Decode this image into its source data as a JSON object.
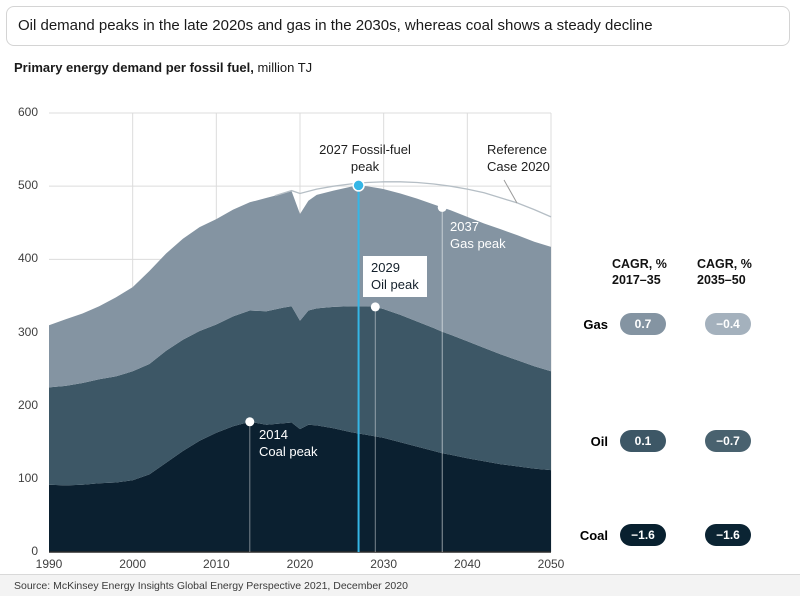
{
  "title": "Oil demand peaks in the late 2020s and gas in the 2030s, whereas coal shows a steady decline",
  "subtitle": {
    "bold": "Primary energy demand per fossil fuel,",
    "rest": " million TJ"
  },
  "source": "Source: McKinsey Energy Insights Global Energy Perspective 2021, December 2020",
  "annotations": {
    "fossil_peak": "2027 Fossil-fuel peak",
    "reference_case": "Reference Case 2020",
    "gas_peak_line1": "2037",
    "gas_peak_line2": "Gas peak",
    "oil_peak_line1": "2029",
    "oil_peak_line2": "Oil peak",
    "coal_peak_line1": "2014",
    "coal_peak_line2": "Coal peak"
  },
  "cagr": {
    "col1_header_line1": "CAGR, %",
    "col1_header_line2": "2017–35",
    "col2_header_line1": "CAGR, %",
    "col2_header_line2": "2035–50",
    "rows": [
      {
        "label": "Gas",
        "v1": "0.7",
        "v2": "−0.4",
        "c1": "#8494a2",
        "c2": "#a4b1bd"
      },
      {
        "label": "Oil",
        "v1": "0.1",
        "v2": "−0.7",
        "c1": "#3d5766",
        "c2": "#49626f"
      },
      {
        "label": "Coal",
        "v1": "−1.6",
        "v2": "−1.6",
        "c1": "#08202f",
        "c2": "#0b2433"
      }
    ]
  },
  "chart_data": {
    "type": "area",
    "stacked": true,
    "title": "Primary energy demand per fossil fuel, million TJ",
    "xlim": [
      1990,
      2050
    ],
    "ylim": [
      0,
      600
    ],
    "x_label_years": [
      1990,
      2000,
      2010,
      2020,
      2030,
      2040,
      2050
    ],
    "grid_years": [
      2000,
      2010,
      2020,
      2030,
      2040,
      2050
    ],
    "y_ticks": [
      0,
      100,
      200,
      300,
      400,
      500,
      600
    ],
    "x": [
      1990,
      1992,
      1994,
      1996,
      1998,
      2000,
      2002,
      2004,
      2006,
      2008,
      2010,
      2012,
      2014,
      2016,
      2018,
      2019,
      2020,
      2021,
      2022,
      2024,
      2026,
      2027,
      2028,
      2029,
      2030,
      2032,
      2034,
      2036,
      2037,
      2038,
      2040,
      2042,
      2044,
      2046,
      2048,
      2050
    ],
    "series": [
      {
        "name": "Coal",
        "color": "#0b2030",
        "values": [
          92,
          91,
          92,
          94,
          95,
          98,
          106,
          122,
          138,
          152,
          163,
          172,
          178,
          174,
          176,
          177,
          168,
          174,
          173,
          169,
          164,
          162,
          160,
          158,
          156,
          150,
          144,
          138,
          135,
          133,
          128,
          124,
          120,
          117,
          114,
          112
        ]
      },
      {
        "name": "Oil",
        "color": "#3d5766",
        "values": [
          133,
          136,
          139,
          142,
          145,
          149,
          151,
          153,
          152,
          150,
          148,
          150,
          152,
          155,
          158,
          159,
          148,
          156,
          160,
          166,
          172,
          174,
          176,
          177,
          176,
          174,
          171,
          168,
          166,
          164,
          160,
          155,
          150,
          145,
          140,
          135
        ]
      },
      {
        "name": "Gas",
        "color": "#8494a2",
        "values": [
          85,
          91,
          95,
          100,
          108,
          115,
          127,
          133,
          138,
          142,
          144,
          146,
          148,
          155,
          156,
          157,
          146,
          150,
          155,
          159,
          163,
          165,
          164,
          163,
          164,
          166,
          168,
          169,
          170,
          170,
          170,
          170,
          171,
          171,
          170,
          170
        ]
      }
    ],
    "reference_line": {
      "name": "Reference Case 2020",
      "color": "#b5bec5",
      "x": [
        2017,
        2019,
        2020,
        2022,
        2024,
        2026,
        2028,
        2030,
        2032,
        2034,
        2036,
        2038,
        2040,
        2042,
        2044,
        2046,
        2048,
        2050
      ],
      "values": [
        487,
        494,
        490,
        496,
        500,
        503,
        505,
        506,
        506,
        505,
        503,
        500,
        496,
        491,
        484,
        477,
        468,
        458
      ]
    },
    "markers": {
      "fossil_peak": {
        "year": 2027,
        "value": 501,
        "color": "#35b6e6"
      },
      "oil_peak": {
        "year": 2029,
        "value": 335
      },
      "gas_peak": {
        "year": 2037,
        "value": 471
      },
      "coal_peak": {
        "year": 2014,
        "value": 178
      }
    }
  }
}
